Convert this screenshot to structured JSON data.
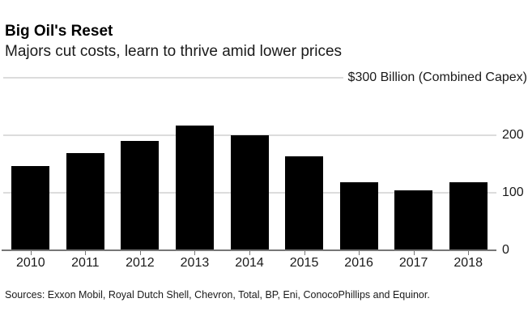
{
  "header": {
    "title": "Big Oil's Reset",
    "subtitle": "Majors cut costs, learn to thrive amid lower prices"
  },
  "axis": {
    "top_label": "$300 Billion (Combined Capex)"
  },
  "footer": {
    "sources": "Sources: Exxon Mobil, Royal Dutch Shell, Chevron, Total, BP, Eni, ConocoPhillips and Equinor."
  },
  "chart_data": {
    "type": "bar",
    "title": "Big Oil's Reset",
    "subtitle": "Majors cut costs, learn to thrive amid lower prices",
    "categories": [
      "2010",
      "2011",
      "2012",
      "2013",
      "2014",
      "2015",
      "2016",
      "2017",
      "2018"
    ],
    "values": [
      146,
      169,
      190,
      217,
      200,
      164,
      118,
      104,
      118
    ],
    "y_axis_label": "$300 Billion (Combined Capex)",
    "xlabel": "",
    "ylabel": "",
    "ylim": [
      0,
      300
    ],
    "yticks": [
      0,
      100,
      200
    ],
    "grid": "horizontal",
    "legend": "none",
    "bar_color": "#000000",
    "source_note": "Sources: Exxon Mobil, Royal Dutch Shell, Chevron, Total, BP, Eni, ConocoPhillips and Equinor."
  },
  "colors": {
    "background": "#ffffff",
    "bar": "#000000",
    "gridline": "#dcdcdc",
    "axis_line": "#777777",
    "text": "#1a1a1a"
  }
}
